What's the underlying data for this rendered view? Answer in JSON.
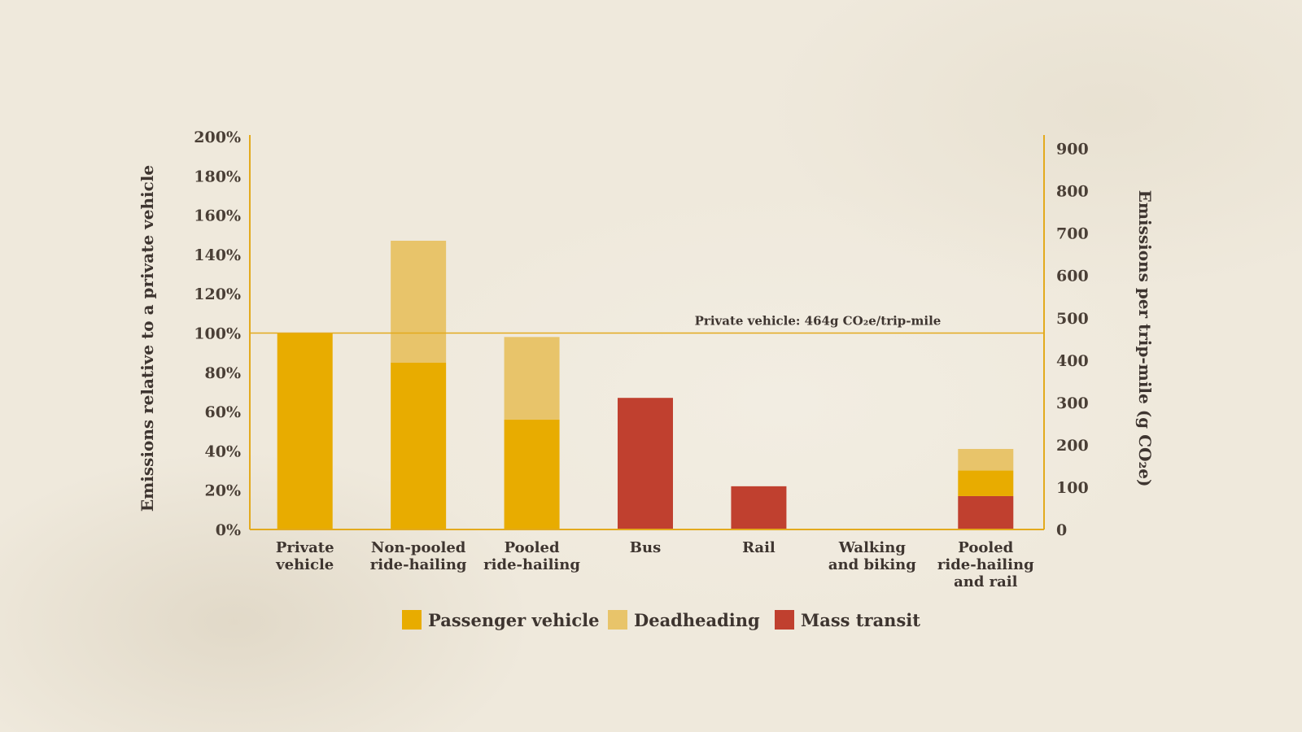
{
  "chart_data": {
    "type": "bar",
    "stacked": true,
    "categories": [
      "Private\nvehicle",
      "Non-pooled\nride-hailing",
      "Pooled\nride-hailing",
      "Bus",
      "Rail",
      "Walking\nand biking",
      "Pooled\nride-hailing\nand rail"
    ],
    "series": [
      {
        "name": "Passenger vehicle",
        "color": "#e8ac00",
        "values": [
          100,
          85,
          56,
          0,
          0,
          0,
          13
        ]
      },
      {
        "name": "Deadheading",
        "color": "#e8c46a",
        "values": [
          0,
          62,
          42,
          0,
          0,
          0,
          11
        ]
      },
      {
        "name": "Mass transit",
        "color": "#c0402f",
        "values": [
          0,
          0,
          0,
          67,
          22,
          0,
          17
        ]
      }
    ],
    "stack_order": [
      "Mass transit",
      "Passenger vehicle",
      "Deadheading"
    ],
    "yleft": {
      "label": "Emissions relative to a private vehicle",
      "ticks": [
        "0%",
        "20%",
        "40%",
        "60%",
        "80%",
        "100%",
        "120%",
        "140%",
        "160%",
        "180%",
        "200%"
      ],
      "ylim": [
        0,
        200
      ]
    },
    "yright": {
      "label": "Emissions per trip-mile (g CO₂e)",
      "ticks": [
        "0",
        "100",
        "200",
        "300",
        "400",
        "500",
        "600",
        "700",
        "800",
        "900"
      ],
      "ylim": [
        0,
        928
      ]
    },
    "reference_line": {
      "value": 100,
      "label": "Private vehicle: 464g CO₂e/trip-mile"
    },
    "legend": {
      "placement": "bottom-center",
      "items": [
        "Passenger vehicle",
        "Deadheading",
        "Mass transit"
      ]
    },
    "axis_color": "#e3aa1e"
  }
}
